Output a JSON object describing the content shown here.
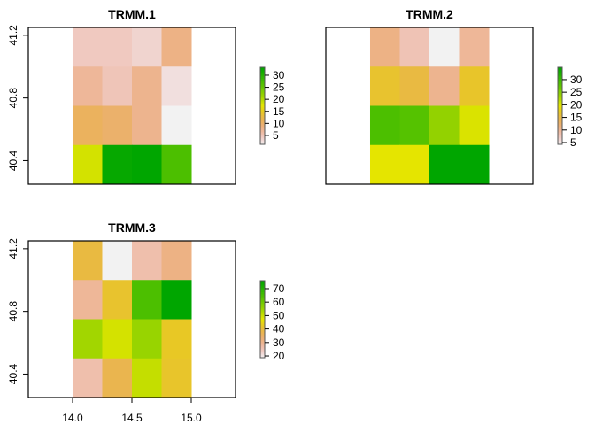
{
  "chart_data": [
    {
      "type": "heatmap",
      "title": "TRMM.1",
      "xlim": [
        13.627,
        15.373
      ],
      "ylim": [
        40.25,
        41.25
      ],
      "extent": {
        "xmin": 14.0,
        "xmax": 15.0,
        "ymin": 40.25,
        "ymax": 41.25
      },
      "y_ticks": [
        "40.4",
        "40.8",
        "41.2"
      ],
      "x_ticks": [],
      "legend": {
        "range": [
          1.3,
          33.3
        ],
        "ticks": [
          5,
          10,
          15,
          20,
          25,
          30
        ],
        "position": "right"
      },
      "rows_top_to_bottom": [
        [
          4.5,
          4.5,
          3.5,
          8.3
        ],
        [
          7.0,
          5.0,
          7.7,
          2.6
        ],
        [
          10.9,
          10.0,
          7.7,
          1.3
        ],
        [
          18.3,
          32.7,
          33.3,
          26.9
        ]
      ]
    },
    {
      "type": "heatmap",
      "title": "TRMM.2",
      "xlim": [
        13.627,
        15.373
      ],
      "ylim": [
        40.25,
        41.25
      ],
      "extent": {
        "xmin": 14.0,
        "xmax": 15.0,
        "ymin": 40.25,
        "ymax": 41.25
      },
      "y_ticks": [],
      "x_ticks": [],
      "legend": {
        "range": [
          4.3,
          34.9
        ],
        "ticks": [
          5,
          10,
          15,
          20,
          25,
          30
        ],
        "position": "right"
      },
      "rows_top_to_bottom": [
        [
          11.0,
          8.0,
          4.3,
          9.8
        ],
        [
          16.5,
          15.3,
          10.4,
          16.8
        ],
        [
          28.8,
          28.2,
          24.2,
          20.2
        ],
        [
          19.6,
          19.6,
          34.9,
          34.9
        ]
      ]
    },
    {
      "type": "heatmap",
      "title": "TRMM.3",
      "xlim": [
        13.627,
        15.373
      ],
      "ylim": [
        40.25,
        41.25
      ],
      "extent": {
        "xmin": 14.0,
        "xmax": 15.0,
        "ymin": 40.25,
        "ymax": 41.25
      },
      "y_ticks": [
        "40.4",
        "40.8",
        "41.2"
      ],
      "x_ticks": [
        "14.0",
        "14.5",
        "15.0"
      ],
      "legend": {
        "range": [
          18.7,
          75.9
        ],
        "ticks": [
          20,
          30,
          40,
          50,
          60,
          70
        ],
        "position": "right"
      },
      "rows_top_to_bottom": [
        [
          39.3,
          18.7,
          26.7,
          31.3
        ],
        [
          29.0,
          41.6,
          64.5,
          75.9
        ],
        [
          54.2,
          49.0,
          55.3,
          42.7
        ],
        [
          26.7,
          37.6,
          50.7,
          42.0
        ]
      ]
    }
  ],
  "color_ramp": "reversed terrain colors (grey → tan → yellow → green)"
}
